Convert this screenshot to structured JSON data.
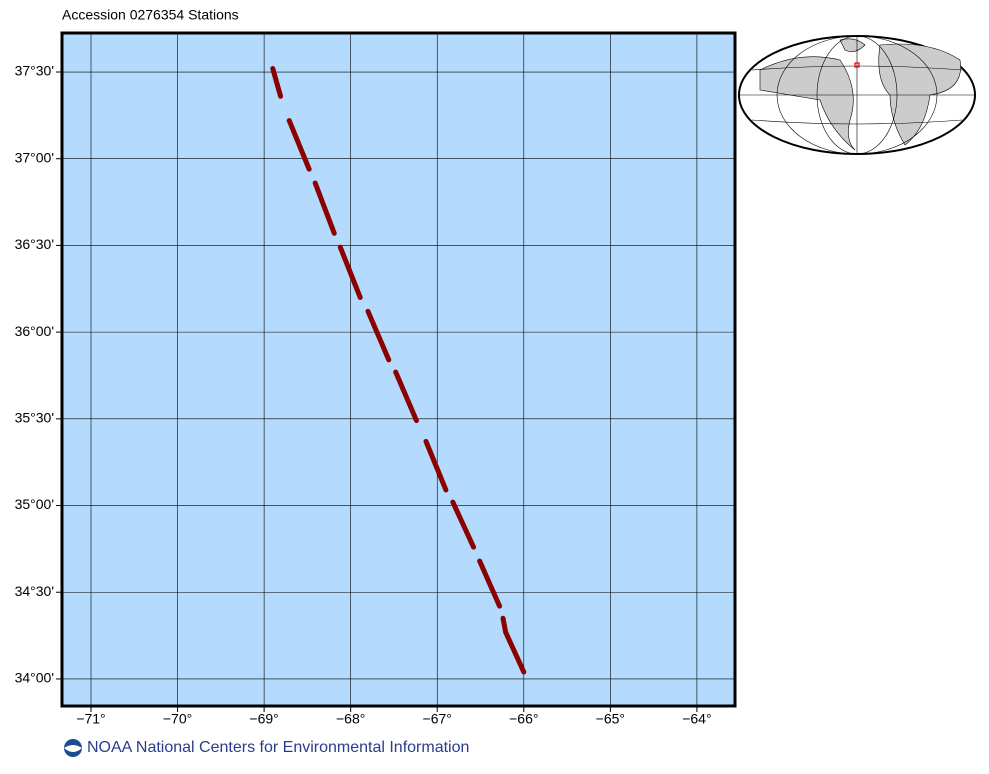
{
  "chart_data": {
    "type": "map",
    "title": "Accession 0276354 Stations",
    "footer": "NOAA National Centers for Environmental Information",
    "xlim": [
      -71.335,
      -63.56
    ],
    "ylim": [
      33.844,
      37.725
    ],
    "xticks": [
      {
        "value": -71,
        "label": "−71°"
      },
      {
        "value": -70,
        "label": "−70°"
      },
      {
        "value": -69,
        "label": "−69°"
      },
      {
        "value": -68,
        "label": "−68°"
      },
      {
        "value": -67,
        "label": "−67°"
      },
      {
        "value": -66,
        "label": "−66°"
      },
      {
        "value": -65,
        "label": "−65°"
      },
      {
        "value": -64,
        "label": "−64°"
      }
    ],
    "yticks": [
      {
        "value": 37.5,
        "label": "37°30'"
      },
      {
        "value": 37,
        "label": "37°00'"
      },
      {
        "value": 36.5,
        "label": "36°30'"
      },
      {
        "value": 36,
        "label": "36°00'"
      },
      {
        "value": 35.5,
        "label": "35°30'"
      },
      {
        "value": 35,
        "label": "35°00'"
      },
      {
        "value": 34.5,
        "label": "34°30'"
      },
      {
        "value": 34,
        "label": "34°00'"
      }
    ],
    "grid": true,
    "ocean_color": "#b4dbfd",
    "stations": {
      "color": "#8b0000",
      "lon": [
        -68.9,
        -68.81,
        null,
        -68.71,
        -68.48,
        null,
        -68.41,
        -68.19,
        null,
        -68.12,
        -67.89,
        null,
        -67.8,
        -67.56,
        null,
        -67.48,
        -67.24,
        null,
        -67.13,
        -66.9,
        null,
        -66.82,
        -66.58,
        null,
        -66.51,
        -66.28,
        null,
        -66.24,
        -66.21,
        -66.0
      ],
      "lat": [
        37.52,
        37.36,
        null,
        37.22,
        36.94,
        null,
        36.86,
        36.57,
        null,
        36.49,
        36.2,
        null,
        36.12,
        35.84,
        null,
        35.77,
        35.49,
        null,
        35.37,
        35.09,
        null,
        35.02,
        34.76,
        null,
        34.68,
        34.42,
        null,
        34.35,
        34.27,
        34.04
      ]
    }
  }
}
